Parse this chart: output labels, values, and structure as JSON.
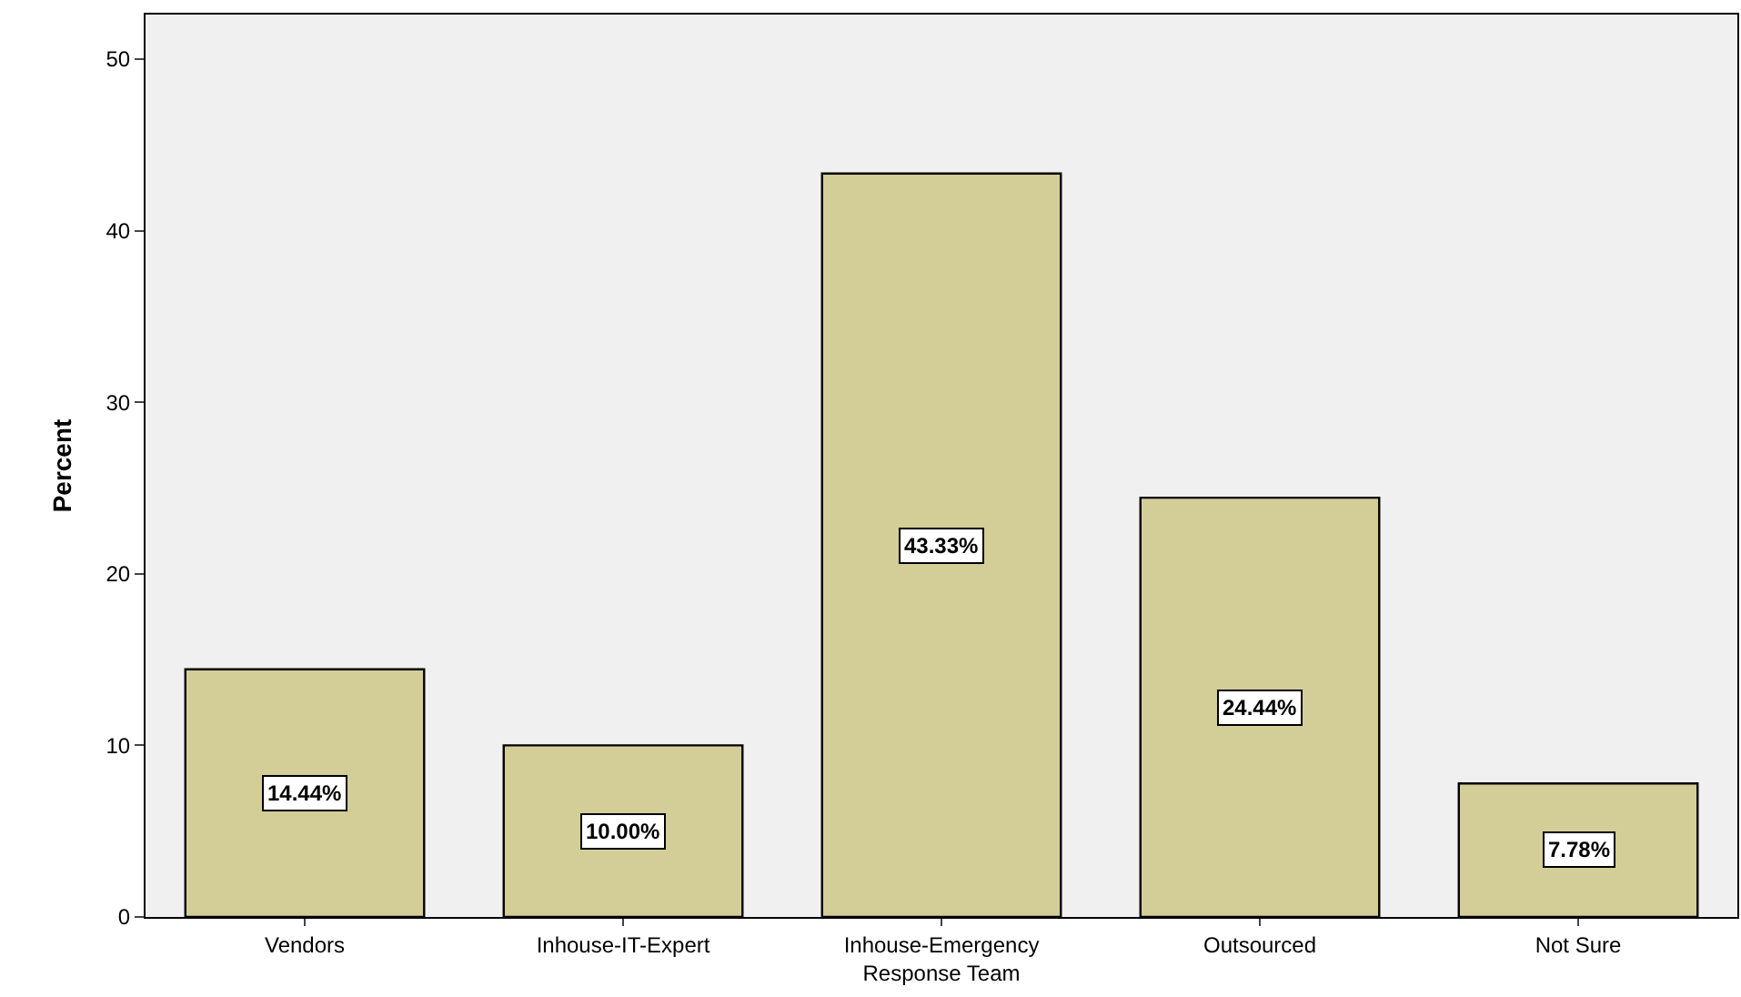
{
  "chart_data": {
    "type": "bar",
    "ylabel": "Percent",
    "categories": [
      "Vendors",
      "Inhouse-IT-Expert",
      "Inhouse-Emergency\nResponse Team",
      "Outsourced",
      "Not Sure"
    ],
    "values": [
      14.44,
      10.0,
      43.33,
      24.44,
      7.78
    ],
    "value_labels": [
      "14.44%",
      "10.00%",
      "43.33%",
      "24.44%",
      "7.78%"
    ],
    "color": "#d3ce98",
    "ylim": [
      0,
      52.6
    ],
    "yticks": [
      0,
      10,
      20,
      30,
      40,
      50
    ],
    "grid": false,
    "legend": false
  }
}
